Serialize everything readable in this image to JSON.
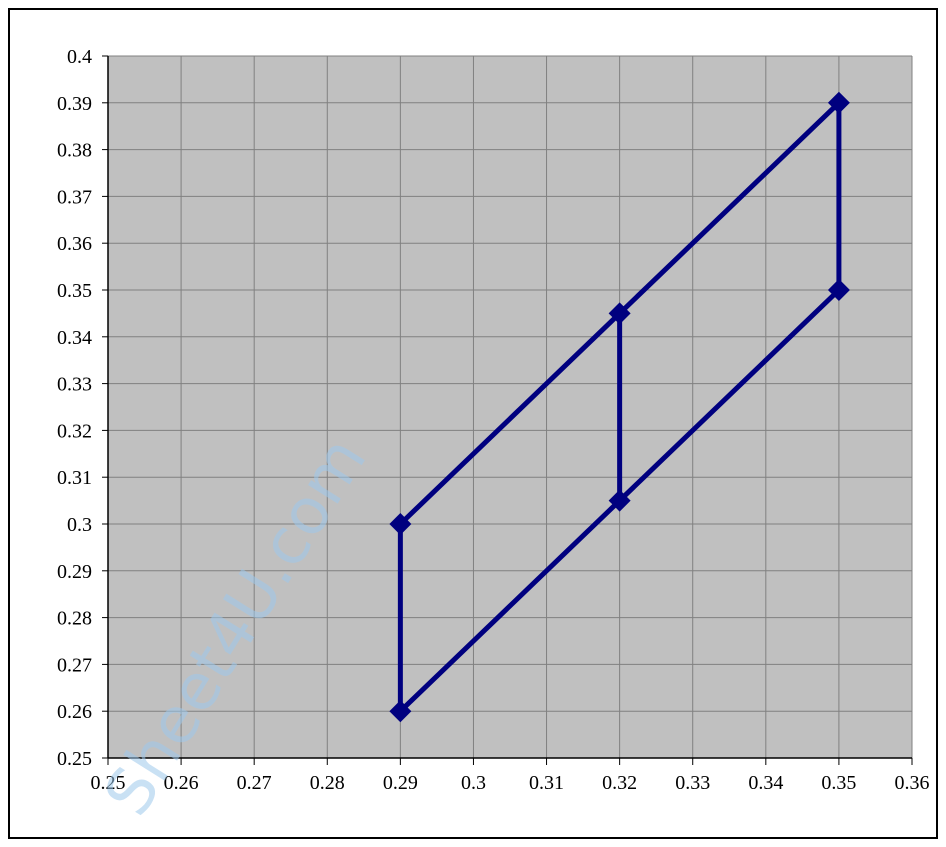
{
  "watermark": "Sheet4U.com",
  "chart_data": {
    "type": "line",
    "title": "",
    "xlabel": "",
    "ylabel": "",
    "xlim": [
      0.25,
      0.36
    ],
    "ylim": [
      0.25,
      0.4
    ],
    "x_ticks": [
      "0.25",
      "0.26",
      "0.27",
      "0.28",
      "0.29",
      "0.3",
      "0.31",
      "0.32",
      "0.33",
      "0.34",
      "0.35",
      "0.36"
    ],
    "y_ticks": [
      "0.25",
      "0.26",
      "0.27",
      "0.28",
      "0.29",
      "0.3",
      "0.31",
      "0.32",
      "0.33",
      "0.34",
      "0.35",
      "0.36",
      "0.37",
      "0.38",
      "0.39",
      "0.4"
    ],
    "grid": true,
    "legend": "none",
    "plot_background": "#c0c0c0",
    "line_color": "#00007f",
    "marker": "diamond",
    "series": [
      {
        "points": [
          {
            "x": 0.29,
            "y": 0.3
          },
          {
            "x": 0.32,
            "y": 0.345
          },
          {
            "x": 0.35,
            "y": 0.39
          },
          {
            "x": 0.35,
            "y": 0.35
          },
          {
            "x": 0.32,
            "y": 0.305
          },
          {
            "x": 0.29,
            "y": 0.26
          },
          {
            "x": 0.29,
            "y": 0.3
          }
        ]
      },
      {
        "points": [
          {
            "x": 0.32,
            "y": 0.345
          },
          {
            "x": 0.32,
            "y": 0.305
          }
        ]
      }
    ]
  }
}
